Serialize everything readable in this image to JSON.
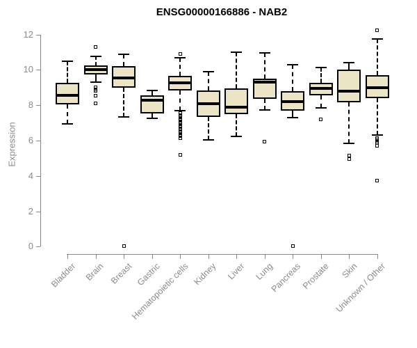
{
  "colors": {
    "box_fill": "#ece5c5",
    "box_stroke": "#000000",
    "axis_gray": "#878787",
    "label_gray": "#8b8b8b",
    "title_color": "#000000"
  },
  "chart_data": {
    "type": "boxplot",
    "title": "ENSG00000166886 - NAB2",
    "xlabel": "",
    "ylabel": "Expression",
    "ylim": [
      0,
      12
    ],
    "yticks": [
      0,
      2,
      4,
      6,
      8,
      10,
      12
    ],
    "grid": false,
    "categories": [
      "Bladder",
      "Brain",
      "Breast",
      "Gastric",
      "Hematopoietic cells",
      "Kidney",
      "Liver",
      "Lung",
      "Pancreas",
      "Prostate",
      "Skin",
      "Unknown / Other"
    ],
    "series": [
      {
        "name": "Bladder",
        "low": 6.95,
        "q1": 8.05,
        "median": 8.55,
        "q3": 9.25,
        "high": 10.5,
        "outliers": []
      },
      {
        "name": "Brain",
        "low": 9.3,
        "q1": 9.75,
        "median": 10.0,
        "q3": 10.25,
        "high": 10.75,
        "outliers": [
          11.3,
          9.0,
          8.9,
          8.8,
          8.55,
          8.1
        ]
      },
      {
        "name": "Breast",
        "low": 7.35,
        "q1": 9.0,
        "median": 9.55,
        "q3": 10.2,
        "high": 10.9,
        "outliers": [
          0.05
        ]
      },
      {
        "name": "Gastric",
        "low": 7.25,
        "q1": 7.55,
        "median": 8.3,
        "q3": 8.55,
        "high": 8.85,
        "outliers": []
      },
      {
        "name": "Hematopoietic cells",
        "low": 7.7,
        "q1": 8.85,
        "median": 9.25,
        "q3": 9.65,
        "high": 10.7,
        "outliers": [
          10.9,
          7.55,
          7.45,
          7.35,
          7.25,
          7.15,
          7.05,
          6.95,
          6.85,
          6.75,
          6.65,
          6.55,
          6.45,
          6.35,
          6.25,
          6.15,
          5.2
        ]
      },
      {
        "name": "Kidney",
        "low": 6.05,
        "q1": 7.35,
        "median": 8.1,
        "q3": 8.85,
        "high": 9.9,
        "outliers": []
      },
      {
        "name": "Liver",
        "low": 6.25,
        "q1": 7.5,
        "median": 7.9,
        "q3": 8.95,
        "high": 11.0,
        "outliers": []
      },
      {
        "name": "Lung",
        "low": 7.75,
        "q1": 8.35,
        "median": 9.3,
        "q3": 9.5,
        "high": 10.95,
        "outliers": [
          5.95
        ]
      },
      {
        "name": "Pancreas",
        "low": 7.3,
        "q1": 7.7,
        "median": 8.2,
        "q3": 8.8,
        "high": 10.3,
        "outliers": [
          0.05
        ]
      },
      {
        "name": "Prostate",
        "low": 7.85,
        "q1": 8.55,
        "median": 8.95,
        "q3": 9.25,
        "high": 10.15,
        "outliers": [
          7.2
        ]
      },
      {
        "name": "Skin",
        "low": 5.85,
        "q1": 8.15,
        "median": 8.8,
        "q3": 10.0,
        "high": 10.4,
        "outliers": [
          5.15,
          4.95
        ]
      },
      {
        "name": "Unknown / Other",
        "low": 6.3,
        "q1": 8.4,
        "median": 9.0,
        "q3": 9.7,
        "high": 11.75,
        "outliers": [
          12.25,
          6.15,
          6.05,
          5.95,
          5.85,
          5.7,
          3.75
        ]
      }
    ]
  }
}
